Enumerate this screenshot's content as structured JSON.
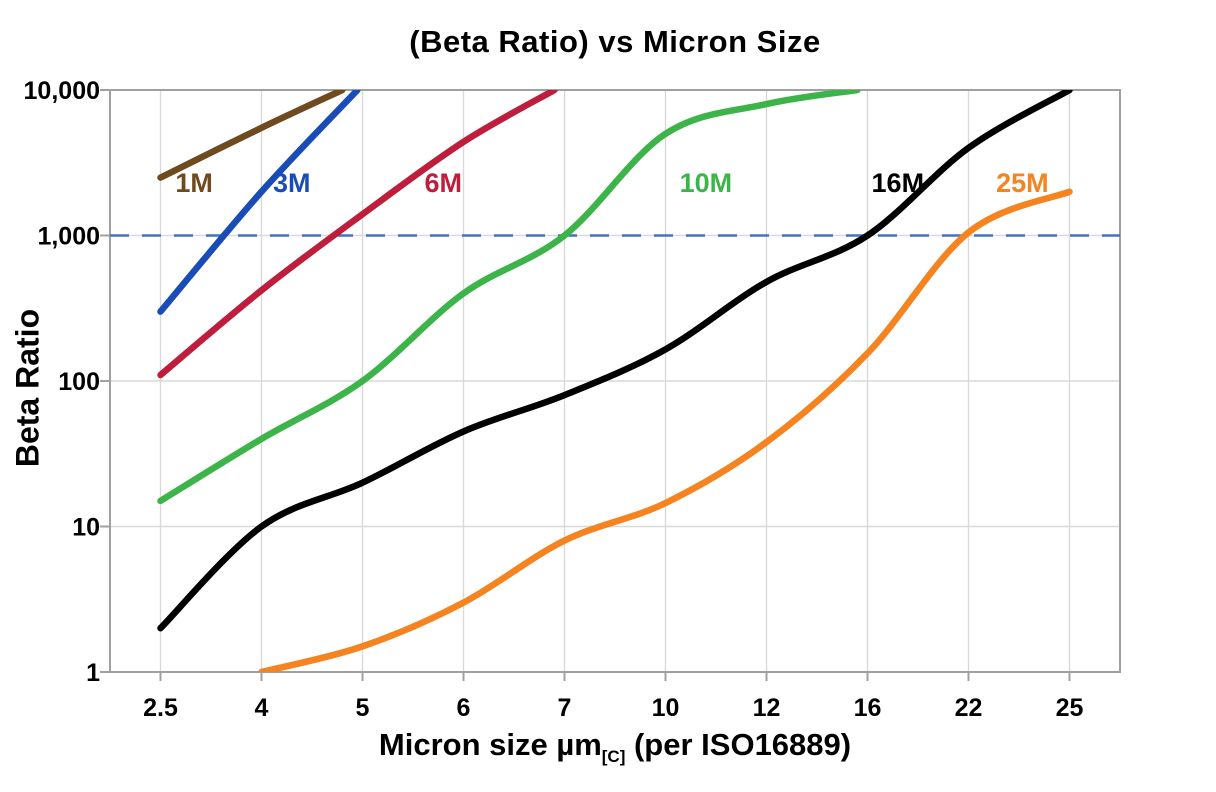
{
  "title": "(Beta Ratio) vs Micron Size",
  "chart_data": {
    "type": "line",
    "title": "(Beta Ratio) vs Micron Size",
    "ylabel": "Beta Ratio",
    "xlabel": "Micron size µm[C] (per ISO16889)",
    "xlabel_parts": {
      "main": "Micron size µm",
      "sub": "[C]",
      "rest": " (per ISO16889)"
    },
    "x_scale": "categorical",
    "y_scale": "log",
    "x_ticks": [
      "2.5",
      "4",
      "5",
      "6",
      "7",
      "10",
      "12",
      "16",
      "22",
      "25"
    ],
    "x_tick_values": [
      2.5,
      4,
      5,
      6,
      7,
      10,
      12,
      16,
      22,
      25
    ],
    "y_ticks": [
      "10,000",
      "1,000",
      "100",
      "10",
      "1"
    ],
    "y_tick_values": [
      10000,
      1000,
      100,
      10,
      1
    ],
    "ylim": [
      1,
      10000
    ],
    "grid": true,
    "legend_position": "inline-labels",
    "reference_line": {
      "value": 1000,
      "style": "dashed",
      "color": "#4472c4"
    },
    "style": {
      "grid_color": "#d9d9d9",
      "border_color": "#a0a0a0",
      "tick_color": "#a0a0a0",
      "text_color": "#000000",
      "line_width": 6.5
    },
    "series": [
      {
        "name": "1M",
        "color": "#6e4a1e",
        "label_at": {
          "x": 3.0,
          "y": 2300
        },
        "points": [
          [
            2.5,
            2500
          ],
          [
            4,
            5500
          ],
          [
            4.8,
            10000
          ]
        ]
      },
      {
        "name": "3M",
        "color": "#1a4cb8",
        "label_at": {
          "x": 4.3,
          "y": 2300
        },
        "points": [
          [
            2.5,
            300
          ],
          [
            4,
            2000
          ],
          [
            4.95,
            10000
          ]
        ]
      },
      {
        "name": "6M",
        "color": "#be1e3c",
        "label_at": {
          "x": 5.8,
          "y": 2300
        },
        "points": [
          [
            2.5,
            110
          ],
          [
            4,
            420
          ],
          [
            5,
            1400
          ],
          [
            6,
            4400
          ],
          [
            6.9,
            10000
          ]
        ]
      },
      {
        "name": "10M",
        "color": "#3cb44a",
        "label_at": {
          "x": 10.8,
          "y": 2300
        },
        "points": [
          [
            2.5,
            15
          ],
          [
            4,
            40
          ],
          [
            5,
            100
          ],
          [
            6,
            400
          ],
          [
            7,
            1000
          ],
          [
            10,
            5000
          ],
          [
            12,
            8000
          ],
          [
            15.6,
            10000
          ]
        ]
      },
      {
        "name": "16M",
        "color": "#000000",
        "label_at": {
          "x": 17.8,
          "y": 2300
        },
        "points": [
          [
            2.5,
            2
          ],
          [
            4,
            10
          ],
          [
            5,
            20
          ],
          [
            6,
            45
          ],
          [
            7,
            80
          ],
          [
            10,
            165
          ],
          [
            12,
            480
          ],
          [
            16,
            1000
          ],
          [
            22,
            4000
          ],
          [
            25,
            10000
          ]
        ]
      },
      {
        "name": "25M",
        "color": "#f5831f",
        "label_at": {
          "x": 23.6,
          "y": 2300
        },
        "points": [
          [
            4,
            1
          ],
          [
            5,
            1.5
          ],
          [
            6,
            3
          ],
          [
            7,
            8
          ],
          [
            10,
            14.5
          ],
          [
            12,
            38
          ],
          [
            16,
            155
          ],
          [
            22,
            1050
          ],
          [
            25,
            2000
          ]
        ]
      }
    ]
  }
}
